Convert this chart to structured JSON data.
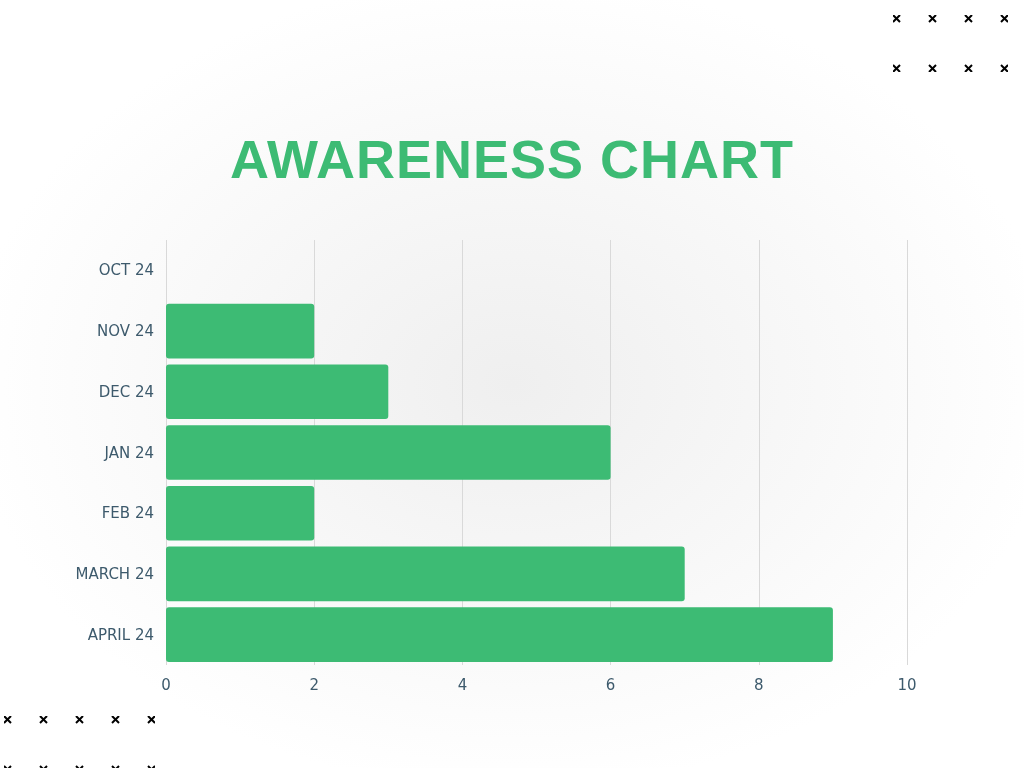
{
  "chart_data": {
    "type": "bar",
    "subtitle": "AWARENESS CHART",
    "orientation": "horizontal",
    "categories": [
      "OCT 24",
      "NOV 24",
      "DEC 24",
      "JAN 24",
      "FEB 24",
      "MARCH 24",
      "APRIL 24"
    ],
    "values": [
      0,
      2,
      3,
      6,
      2,
      7,
      9
    ],
    "color": "#3dbb74",
    "xlim": [
      0,
      10
    ],
    "xticks": [
      0,
      2,
      4,
      6,
      8,
      10
    ],
    "grid": "x"
  }
}
